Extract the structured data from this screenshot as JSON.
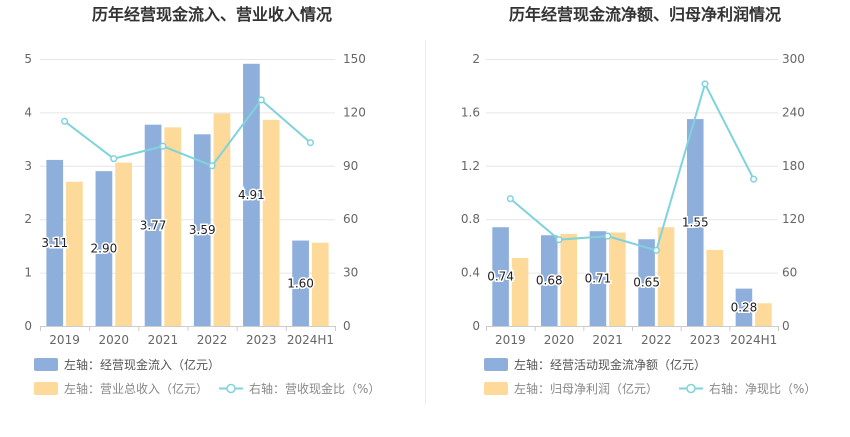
{
  "chart_data": [
    {
      "type": "bar",
      "title": "历年经营现金流入、营业收入情况",
      "categories": [
        "2019",
        "2020",
        "2021",
        "2022",
        "2023",
        "2024H1"
      ],
      "left_axis": {
        "ticks": [
          "0",
          "1",
          "2",
          "3",
          "4",
          "5"
        ],
        "min": 0,
        "max": 5
      },
      "right_axis": {
        "ticks": [
          "0",
          "30",
          "60",
          "90",
          "120",
          "150"
        ],
        "min": 0,
        "max": 150
      },
      "series": [
        {
          "name": "左轴：经营现金流入（亿元）",
          "kind": "bar",
          "axis": "left",
          "color": "#8eaedc",
          "values": [
            3.11,
            2.9,
            3.77,
            3.59,
            4.91,
            1.6
          ],
          "labels": [
            "3.11",
            "2.90",
            "3.77",
            "3.59",
            "4.91",
            "1.60"
          ]
        },
        {
          "name": "左轴：营业总收入（亿元）",
          "kind": "bar",
          "axis": "left",
          "color": "#fdd99a",
          "values": [
            2.7,
            3.06,
            3.72,
            3.98,
            3.86,
            1.56
          ]
        },
        {
          "name": "右轴：营收现金比（%）",
          "kind": "line",
          "axis": "right",
          "color": "#7fd3dc",
          "values": [
            115,
            94,
            101,
            90,
            127,
            103
          ]
        }
      ],
      "grid": true,
      "legend_position": "bottom"
    },
    {
      "type": "bar",
      "title": "历年经营现金流净额、归母净利润情况",
      "categories": [
        "2019",
        "2020",
        "2021",
        "2022",
        "2023",
        "2024H1"
      ],
      "left_axis": {
        "ticks": [
          "0",
          "0.4",
          "0.8",
          "1.2",
          "1.6",
          "2"
        ],
        "min": 0,
        "max": 2
      },
      "right_axis": {
        "ticks": [
          "0",
          "60",
          "120",
          "180",
          "240",
          "300"
        ],
        "min": 0,
        "max": 300
      },
      "series": [
        {
          "name": "左轴：经营活动现金流净额（亿元）",
          "kind": "bar",
          "axis": "left",
          "color": "#8eaedc",
          "values": [
            0.74,
            0.68,
            0.71,
            0.65,
            1.55,
            0.28
          ],
          "labels": [
            "0.74",
            "0.68",
            "0.71",
            "0.65",
            "1.55",
            "0.28"
          ]
        },
        {
          "name": "左轴：归母净利润（亿元）",
          "kind": "bar",
          "axis": "left",
          "color": "#fdd99a",
          "values": [
            0.51,
            0.69,
            0.7,
            0.74,
            0.57,
            0.17
          ]
        },
        {
          "name": "右轴：净现比（%）",
          "kind": "line",
          "axis": "right",
          "color": "#7fd3dc",
          "values": [
            143,
            97,
            101,
            85,
            272,
            165
          ]
        }
      ],
      "grid": true,
      "legend_position": "bottom"
    }
  ]
}
